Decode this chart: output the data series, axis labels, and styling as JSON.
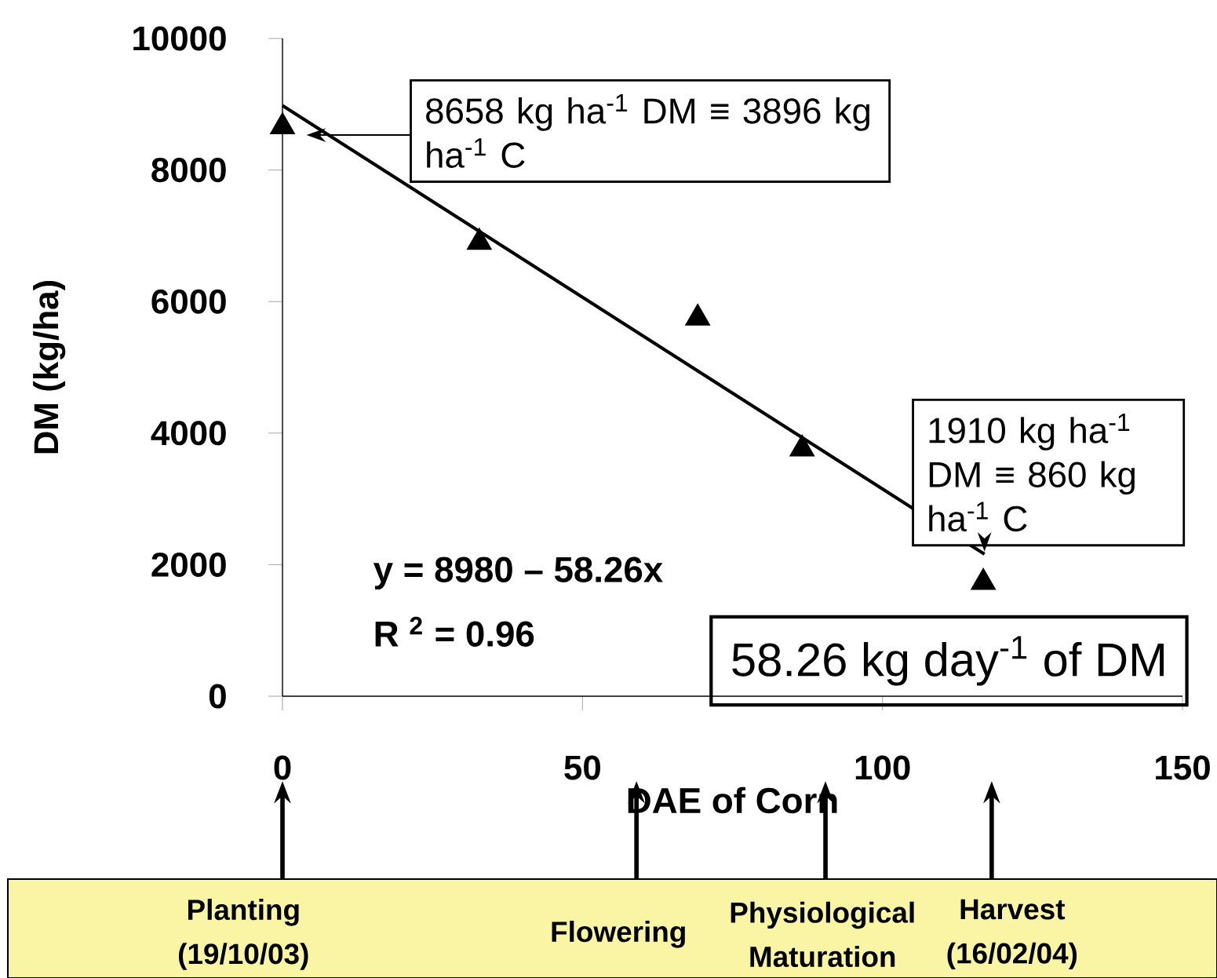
{
  "chart_data": {
    "type": "scatter",
    "xlabel": "DAE of Corn",
    "ylabel": "DM (kg/ha)",
    "xlim": [
      0,
      150
    ],
    "ylim": [
      0,
      10000
    ],
    "xticks": [
      0,
      50,
      100,
      150
    ],
    "yticks": [
      0,
      2000,
      4000,
      6000,
      8000,
      10000
    ],
    "grid": false,
    "series": [
      {
        "color": "#000000",
        "marker": "triangle",
        "x": [
          0,
          32.8,
          69.2,
          86.6,
          116.8
        ],
        "values": [
          8658,
          6900,
          5750,
          3760,
          1730
        ]
      },
      {
        "type": "line",
        "color": "#000000",
        "marker": "none",
        "x": [
          0,
          117
        ],
        "values": [
          8980,
          2160
        ]
      }
    ],
    "annotations": [
      "8658 kg ha$^{-1}$ DM ≡ 3896 kg ha$^{-1}$ C",
      "1910 kg ha$^{-1}$ DM ≡ 860 kg ha$^{-1}$ C",
      "y = 8980 – 58.26x",
      "R $^{2}$ = 0.96",
      "58.26 kg day$^{-1}$ of DM",
      "Planting (19/10/03)",
      "Flowering",
      "Physiological Maturation",
      "Harvest (16/02/04)"
    ]
  }
}
